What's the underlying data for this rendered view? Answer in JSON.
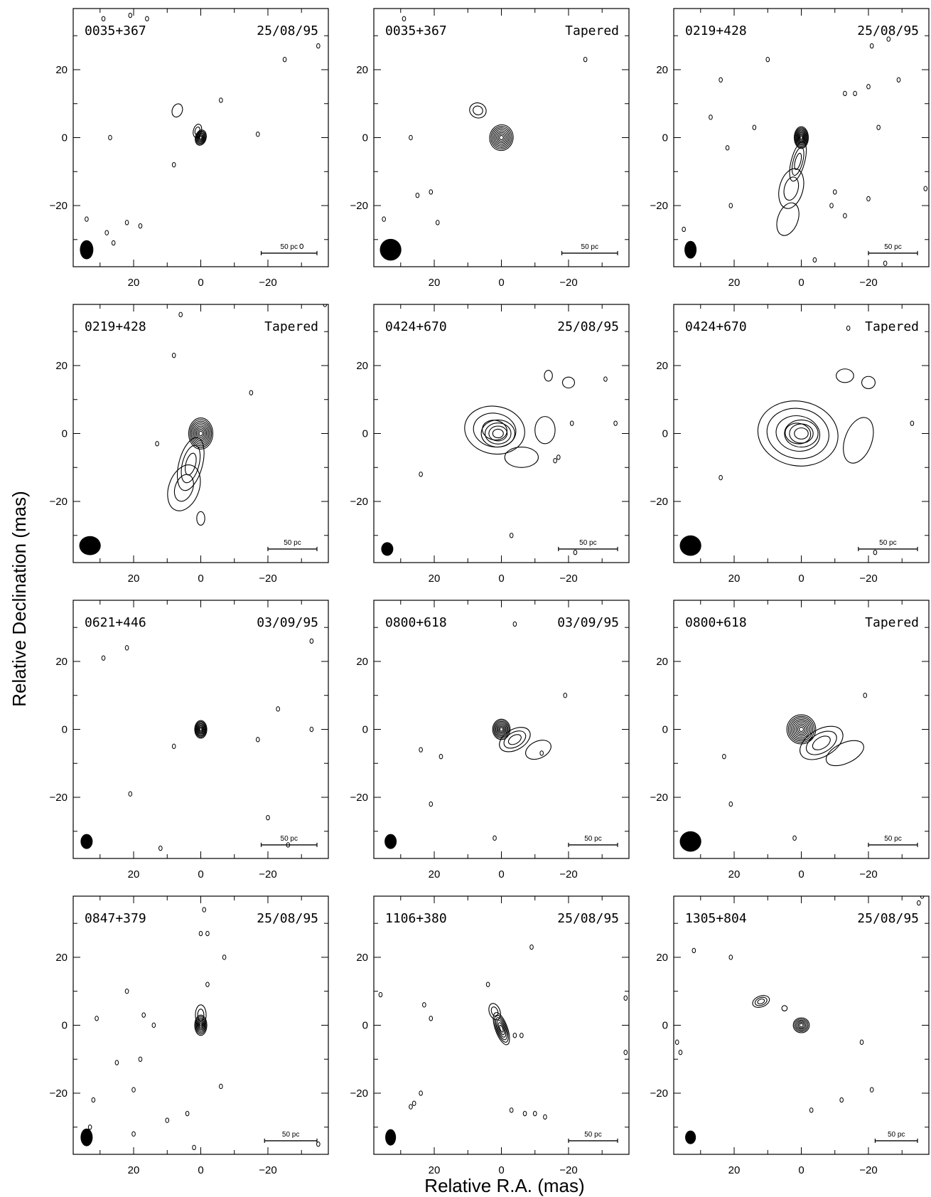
{
  "figure": {
    "ylabel": "Relative Declination (mas)",
    "xlabel": "Relative R.A. (mas)"
  },
  "chart_data": {
    "type": "contour",
    "xlabel": "Relative R.A. (mas)",
    "ylabel": "Relative Declination (mas)",
    "xlim": [
      38,
      -38
    ],
    "ylim": [
      -38,
      38
    ],
    "x_ticks": [
      20,
      0,
      -20
    ],
    "y_ticks": [
      20,
      0,
      -20
    ],
    "x_tick_labels": [
      "20",
      "0",
      "−20"
    ],
    "y_tick_labels": [
      "20",
      "0",
      "−20"
    ],
    "scalebar_label": "50 pc",
    "panels": [
      {
        "source": "0035+367",
        "tag": "25/08/95",
        "beam": [
          34,
          -33,
          2.0,
          2.8
        ],
        "scalebar": [
          -18,
          -34
        ],
        "components": [
          {
            "x": 0,
            "y": 0,
            "sx": 1.6,
            "sy": 2.3,
            "pa": 15,
            "n": 7
          },
          {
            "x": 1,
            "y": 2,
            "sx": 1.2,
            "sy": 2,
            "pa": 15,
            "n": 2
          },
          {
            "x": 7,
            "y": 8,
            "sx": 1.5,
            "sy": 2,
            "pa": 20,
            "n": 1
          }
        ],
        "specks": [
          [
            27,
            0
          ],
          [
            8,
            -8
          ],
          [
            -6,
            11
          ],
          [
            -17,
            1
          ],
          [
            -25,
            23
          ],
          [
            -30,
            -32
          ],
          [
            -35,
            27
          ],
          [
            34,
            -24
          ],
          [
            28,
            -28
          ],
          [
            26,
            -31
          ],
          [
            22,
            -25
          ],
          [
            18,
            -26
          ],
          [
            29,
            35
          ],
          [
            21,
            36
          ],
          [
            16,
            35
          ]
        ]
      },
      {
        "source": "0035+367",
        "tag": "Tapered",
        "beam": [
          33,
          -33,
          3.2,
          3.2
        ],
        "scalebar": [
          -18,
          -34
        ],
        "components": [
          {
            "x": 0,
            "y": 0,
            "sx": 3.5,
            "sy": 3.8,
            "pa": 10,
            "n": 8
          },
          {
            "x": 7,
            "y": 8,
            "sx": 2.5,
            "sy": 2.2,
            "pa": 20,
            "n": 2
          }
        ],
        "specks": [
          [
            27,
            0
          ],
          [
            21,
            -16
          ],
          [
            25,
            -17
          ],
          [
            19,
            -25
          ],
          [
            35,
            -24
          ],
          [
            -25,
            23
          ],
          [
            29,
            35
          ]
        ]
      },
      {
        "source": "0219+428",
        "tag": "25/08/95",
        "beam": [
          33,
          -33,
          1.8,
          2.6
        ],
        "scalebar": [
          -20,
          -34
        ],
        "components": [
          {
            "x": 0,
            "y": 0,
            "sx": 2.1,
            "sy": 3.2,
            "pa": 0,
            "n": 9
          },
          {
            "x": 1,
            "y": -7,
            "sx": 2,
            "sy": 6,
            "pa": 15,
            "n": 3
          },
          {
            "x": 3,
            "y": -15,
            "sx": 3.5,
            "sy": 6,
            "pa": 15,
            "n": 2
          },
          {
            "x": 4,
            "y": -24,
            "sx": 3,
            "sy": 5,
            "pa": 20,
            "n": 1
          }
        ],
        "specks": [
          [
            14,
            3
          ],
          [
            22,
            -3
          ],
          [
            27,
            6
          ],
          [
            24,
            17
          ],
          [
            10,
            23
          ],
          [
            -13,
            13
          ],
          [
            -16,
            13
          ],
          [
            -20,
            15
          ],
          [
            -29,
            17
          ],
          [
            -9,
            -20
          ],
          [
            -20,
            -18
          ],
          [
            -13,
            -23
          ],
          [
            -21,
            27
          ],
          [
            -26,
            29
          ],
          [
            -23,
            3
          ],
          [
            -37,
            -15
          ],
          [
            35,
            -27
          ],
          [
            21,
            -20
          ],
          [
            -4,
            -36
          ],
          [
            -25,
            -37
          ],
          [
            -10,
            -16
          ]
        ]
      },
      {
        "source": "0219+428",
        "tag": "Tapered",
        "beam": [
          33,
          -33,
          3.2,
          2.8
        ],
        "scalebar": [
          -20,
          -34
        ],
        "components": [
          {
            "x": 0,
            "y": 0,
            "sx": 3.6,
            "sy": 4.6,
            "pa": 0,
            "n": 9
          },
          {
            "x": 3,
            "y": -9,
            "sx": 3.5,
            "sy": 8,
            "pa": 15,
            "n": 3
          },
          {
            "x": 5,
            "y": -16,
            "sx": 4.5,
            "sy": 7,
            "pa": 20,
            "n": 2
          },
          {
            "x": 0,
            "y": -25,
            "sx": 1.2,
            "sy": 2,
            "pa": 0,
            "n": 1
          }
        ],
        "specks": [
          [
            13,
            -3
          ],
          [
            8,
            23
          ],
          [
            6,
            35
          ],
          [
            -15,
            12
          ],
          [
            -37,
            38
          ]
        ]
      },
      {
        "source": "0424+670",
        "tag": "25/08/95",
        "beam": [
          34,
          -34,
          1.8,
          2.0
        ],
        "scalebar": [
          -17,
          -34
        ],
        "components": [
          {
            "x": 2,
            "y": 1,
            "sx": 9,
            "sy": 7,
            "pa": 10,
            "n": 3
          },
          {
            "x": 1,
            "y": 0,
            "sx": 5,
            "sy": 4,
            "pa": 0,
            "n": 4
          },
          {
            "x": -6,
            "y": -7,
            "sx": 5,
            "sy": 3,
            "pa": 0,
            "n": 1
          },
          {
            "x": -13,
            "y": 1,
            "sx": 3,
            "sy": 4,
            "pa": 0,
            "n": 1
          },
          {
            "x": -20,
            "y": 15,
            "sx": 1.8,
            "sy": 1.6,
            "pa": 0,
            "n": 1
          },
          {
            "x": -14,
            "y": 17,
            "sx": 1.2,
            "sy": 1.6,
            "pa": 0,
            "n": 1
          }
        ],
        "specks": [
          [
            24,
            -12
          ],
          [
            -31,
            16
          ],
          [
            -34,
            3
          ],
          [
            -21,
            3
          ],
          [
            -17,
            -7
          ],
          [
            -3,
            -30
          ],
          [
            -22,
            -35
          ],
          [
            -16,
            -8
          ]
        ]
      },
      {
        "source": "0424+670",
        "tag": "Tapered",
        "beam": [
          33,
          -33,
          3.2,
          3.0
        ],
        "scalebar": [
          -17,
          -34
        ],
        "components": [
          {
            "x": 1,
            "y": 0,
            "sx": 12,
            "sy": 9.5,
            "pa": 10,
            "n": 4
          },
          {
            "x": 0,
            "y": 0,
            "sx": 5,
            "sy": 4,
            "pa": 0,
            "n": 3
          },
          {
            "x": -17,
            "y": -2,
            "sx": 4,
            "sy": 7,
            "pa": 20,
            "n": 1
          },
          {
            "x": -13,
            "y": 17,
            "sx": 2.6,
            "sy": 2,
            "pa": 0,
            "n": 1
          },
          {
            "x": -20,
            "y": 15,
            "sx": 2.0,
            "sy": 1.8,
            "pa": 0,
            "n": 1
          }
        ],
        "specks": [
          [
            24,
            -13
          ],
          [
            -33,
            3
          ],
          [
            -22,
            -35
          ],
          [
            -14,
            31
          ]
        ]
      },
      {
        "source": "0621+446",
        "tag": "03/09/95",
        "beam": [
          34,
          -33,
          1.8,
          2.2
        ],
        "scalebar": [
          -18,
          -34
        ],
        "components": [
          {
            "x": 0,
            "y": 0,
            "sx": 1.8,
            "sy": 2.6,
            "pa": 0,
            "n": 8
          }
        ],
        "specks": [
          [
            22,
            24
          ],
          [
            21,
            -19
          ],
          [
            8,
            -5
          ],
          [
            -23,
            6
          ],
          [
            -17,
            -3
          ],
          [
            -33,
            0
          ],
          [
            -33,
            26
          ],
          [
            -20,
            -26
          ],
          [
            -26,
            -34
          ],
          [
            29,
            21
          ],
          [
            12,
            -35
          ]
        ]
      },
      {
        "source": "0800+618",
        "tag": "03/09/95",
        "beam": [
          33,
          -33,
          1.8,
          2.2
        ],
        "scalebar": [
          -20,
          -34
        ],
        "components": [
          {
            "x": 0,
            "y": 0,
            "sx": 2.6,
            "sy": 3,
            "pa": 0,
            "n": 8
          },
          {
            "x": -4,
            "y": -3,
            "sx": 5,
            "sy": 3,
            "pa": -30,
            "n": 3
          },
          {
            "x": -11,
            "y": -6,
            "sx": 4,
            "sy": 2.5,
            "pa": -25,
            "n": 1
          }
        ],
        "specks": [
          [
            -19,
            10
          ],
          [
            -12,
            -7
          ],
          [
            -4,
            31
          ],
          [
            24,
            -6
          ],
          [
            21,
            -22
          ],
          [
            2,
            -32
          ],
          [
            18,
            -8
          ]
        ]
      },
      {
        "source": "0800+618",
        "tag": "Tapered",
        "beam": [
          33,
          -33,
          3.2,
          3.0
        ],
        "scalebar": [
          -20,
          -34
        ],
        "components": [
          {
            "x": 0,
            "y": 0,
            "sx": 4.3,
            "sy": 4.3,
            "pa": 0,
            "n": 9
          },
          {
            "x": -6,
            "y": -4,
            "sx": 7,
            "sy": 4,
            "pa": -30,
            "n": 3
          },
          {
            "x": -13,
            "y": -7,
            "sx": 6,
            "sy": 3,
            "pa": -25,
            "n": 1
          }
        ],
        "specks": [
          [
            -19,
            10
          ],
          [
            23,
            -8
          ],
          [
            21,
            -22
          ],
          [
            2,
            -32
          ]
        ]
      },
      {
        "source": "0847+379",
        "tag": "25/08/95",
        "beam": [
          34,
          -33,
          1.8,
          2.6
        ],
        "scalebar": [
          -19,
          -34
        ],
        "components": [
          {
            "x": 0,
            "y": 0,
            "sx": 1.8,
            "sy": 3,
            "pa": 0,
            "n": 7
          },
          {
            "x": 0,
            "y": 3,
            "sx": 1.6,
            "sy": 3,
            "pa": 0,
            "n": 2
          }
        ],
        "specks": [
          [
            -1,
            34
          ],
          [
            0,
            27
          ],
          [
            -2,
            27
          ],
          [
            -7,
            20
          ],
          [
            -2,
            12
          ],
          [
            17,
            3
          ],
          [
            14,
            0
          ],
          [
            31,
            2
          ],
          [
            22,
            10
          ],
          [
            18,
            -10
          ],
          [
            25,
            -11
          ],
          [
            20,
            -19
          ],
          [
            -35,
            -35
          ],
          [
            -6,
            -18
          ],
          [
            10,
            -28
          ],
          [
            4,
            -26
          ],
          [
            20,
            -32
          ],
          [
            32,
            -22
          ],
          [
            2,
            -36
          ],
          [
            33,
            -30
          ]
        ]
      },
      {
        "source": "1106+380",
        "tag": "25/08/95",
        "beam": [
          33,
          -33,
          1.6,
          2.4
        ],
        "scalebar": [
          -20,
          -34
        ],
        "components": [
          {
            "x": 0,
            "y": -1,
            "sx": 1.8,
            "sy": 5,
            "pa": -20,
            "n": 6
          },
          {
            "x": 2,
            "y": 4,
            "sx": 1.6,
            "sy": 2.5,
            "pa": -20,
            "n": 2
          }
        ],
        "specks": [
          [
            -9,
            23
          ],
          [
            -37,
            8
          ],
          [
            -37,
            -8
          ],
          [
            -13,
            -27
          ],
          [
            -7,
            -26
          ],
          [
            -3,
            -25
          ],
          [
            -10,
            -26
          ],
          [
            23,
            6
          ],
          [
            21,
            2
          ],
          [
            24,
            -20
          ],
          [
            26,
            -23
          ],
          [
            27,
            -24
          ],
          [
            36,
            9
          ],
          [
            4,
            12
          ],
          [
            -6,
            -3
          ],
          [
            -4,
            -3
          ]
        ]
      },
      {
        "source": "1305+804",
        "tag": "25/08/95",
        "beam": [
          33,
          -33,
          1.6,
          2.0
        ],
        "scalebar": [
          -22,
          -34
        ],
        "components": [
          {
            "x": 0,
            "y": 0,
            "sx": 2.4,
            "sy": 2.2,
            "pa": 0,
            "n": 6
          },
          {
            "x": 12,
            "y": 7,
            "sx": 2.6,
            "sy": 1.6,
            "pa": -20,
            "n": 3
          },
          {
            "x": 5,
            "y": 5,
            "sx": 0.8,
            "sy": 0.8,
            "pa": 0,
            "n": 1
          }
        ],
        "specks": [
          [
            32,
            22
          ],
          [
            21,
            20
          ],
          [
            36,
            -8
          ],
          [
            37,
            -5
          ],
          [
            -18,
            -5
          ],
          [
            -35,
            36
          ],
          [
            -12,
            -22
          ],
          [
            -21,
            -19
          ],
          [
            -3,
            -25
          ],
          [
            -36,
            38
          ]
        ]
      }
    ]
  }
}
